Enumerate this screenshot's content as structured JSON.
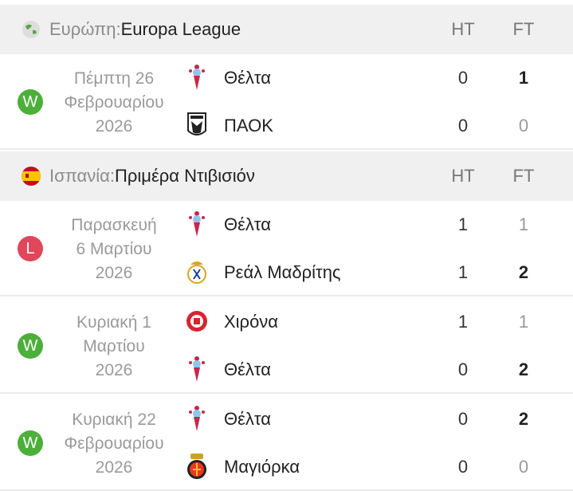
{
  "sections": [
    {
      "region": "Ευρώπη:",
      "league": "Europa League",
      "icon": "globe-icon",
      "ht": "HT",
      "ft": "FT",
      "matches": [
        {
          "result": "W",
          "date": [
            "Πέμπτη 26",
            "Φεβρουαρίου",
            "2026"
          ],
          "teams": [
            {
              "name": "Θέλτα",
              "logo": "celta-crest-icon",
              "ht": "0",
              "ft": "1",
              "win": true
            },
            {
              "name": "ΠΑΟΚ",
              "logo": "paok-crest-icon",
              "ht": "0",
              "ft": "0",
              "win": false
            }
          ]
        }
      ]
    },
    {
      "region": "Ισπανία:",
      "league": "Πριμέρα Ντιβισιόν",
      "icon": "spain-flag-icon",
      "ht": "HT",
      "ft": "FT",
      "matches": [
        {
          "result": "L",
          "date": [
            "Παρασκευή",
            "6 Μαρτίου",
            "2026"
          ],
          "teams": [
            {
              "name": "Θέλτα",
              "logo": "celta-crest-icon",
              "ht": "1",
              "ft": "1",
              "win": false
            },
            {
              "name": "Ρεάλ Μαδρίτης",
              "logo": "real-madrid-crest-icon",
              "ht": "1",
              "ft": "2",
              "win": true
            }
          ]
        },
        {
          "result": "W",
          "date": [
            "Κυριακή 1",
            "Μαρτίου",
            "2026"
          ],
          "teams": [
            {
              "name": "Χιρόνα",
              "logo": "girona-crest-icon",
              "ht": "1",
              "ft": "1",
              "win": false
            },
            {
              "name": "Θέλτα",
              "logo": "celta-crest-icon",
              "ht": "0",
              "ft": "2",
              "win": true
            }
          ]
        },
        {
          "result": "W",
          "date": [
            "Κυριακή 22",
            "Φεβρουαρίου",
            "2026"
          ],
          "teams": [
            {
              "name": "Θέλτα",
              "logo": "celta-crest-icon",
              "ht": "0",
              "ft": "2",
              "win": true
            },
            {
              "name": "Μαγιόρκα",
              "logo": "mallorca-crest-icon",
              "ht": "0",
              "ft": "0",
              "win": false
            }
          ]
        }
      ]
    }
  ],
  "colors": {
    "win": "#4caf3a",
    "loss": "#e0475a"
  }
}
